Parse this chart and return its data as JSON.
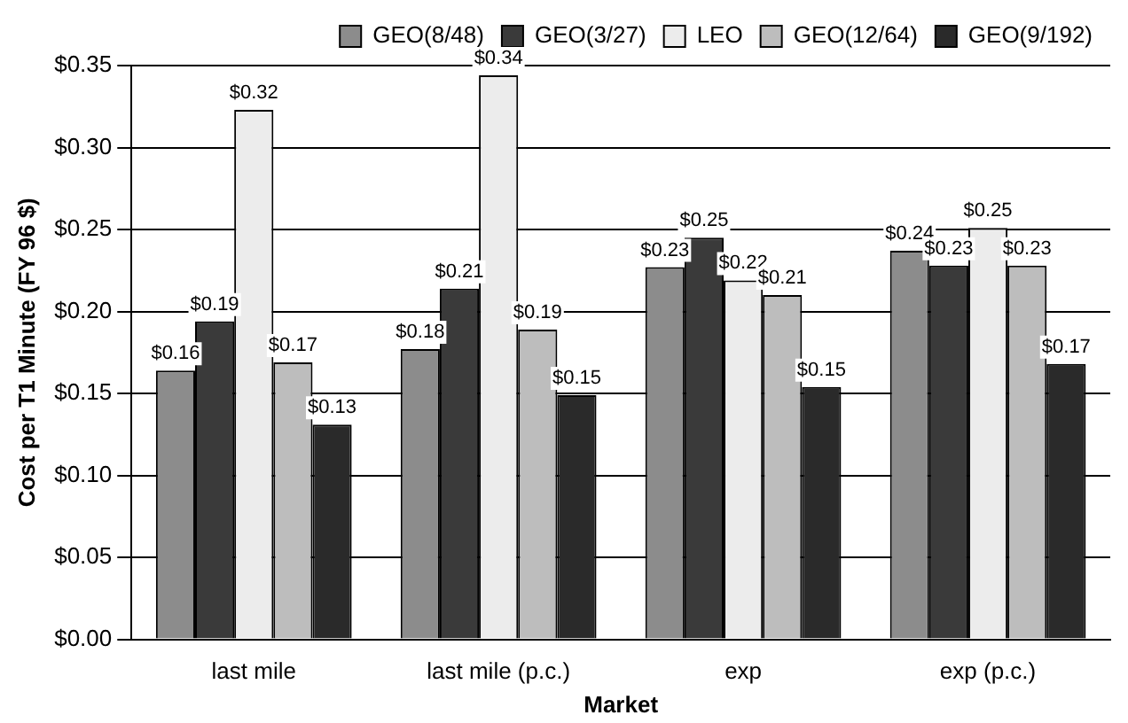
{
  "chart_data": {
    "type": "bar",
    "xlabel": "Market",
    "ylabel": "Cost per T1 Minute (FY 96 $)",
    "categories": [
      "last mile",
      "last mile (p.c.)",
      "exp",
      "exp (p.c.)"
    ],
    "series": [
      {
        "name": "GEO(8/48)",
        "color": "#8c8c8c",
        "values": [
          0.164,
          0.177,
          0.227,
          0.237
        ],
        "value_labels": [
          "$0.16",
          "$0.18",
          "$0.23",
          "$0.24"
        ]
      },
      {
        "name": "GEO(3/27)",
        "color": "#3a3a3a",
        "values": [
          0.194,
          0.214,
          0.245,
          0.228
        ],
        "value_labels": [
          "$0.19",
          "$0.21",
          "$0.25",
          "$0.23"
        ]
      },
      {
        "name": "LEO",
        "color": "#ececec",
        "values": [
          0.323,
          0.344,
          0.219,
          0.251
        ],
        "value_labels": [
          "$0.32",
          "$0.34",
          "$0.22",
          "$0.25"
        ]
      },
      {
        "name": "GEO(12/64)",
        "color": "#bdbdbd",
        "values": [
          0.169,
          0.189,
          0.21,
          0.228
        ],
        "value_labels": [
          "$0.17",
          "$0.19",
          "$0.21",
          "$0.23"
        ]
      },
      {
        "name": "GEO(9/192)",
        "color": "#2a2a2a",
        "values": [
          0.131,
          0.149,
          0.154,
          0.168
        ],
        "value_labels": [
          "$0.13",
          "$0.15",
          "$0.15",
          "$0.17"
        ]
      }
    ],
    "ylim": [
      0,
      0.35
    ],
    "yticks": [
      {
        "value": 0,
        "label": "$0.00"
      },
      {
        "value": 0.05,
        "label": "$0.05"
      },
      {
        "value": 0.1,
        "label": "$0.10"
      },
      {
        "value": 0.15,
        "label": "$0.15"
      },
      {
        "value": 0.2,
        "label": "$0.20"
      },
      {
        "value": 0.25,
        "label": "$0.25"
      },
      {
        "value": 0.3,
        "label": "$0.30"
      },
      {
        "value": 0.35,
        "label": "$0.35"
      }
    ],
    "grid": "y",
    "legend": "top right"
  }
}
